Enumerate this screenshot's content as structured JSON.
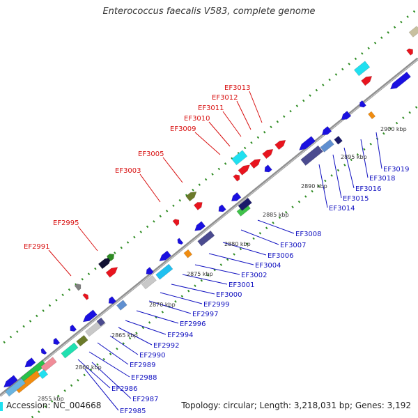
{
  "title": "Enterococcus faecalis V583, complete genome",
  "footer": {
    "accession": "Accession: NC_004668",
    "topology": "Topology: circular; Length: 3,218,031 bp; Genes: 3,192"
  },
  "colors": {
    "forward_strand": "#e8141e",
    "reverse_strand": "#1a10e0",
    "backbone": "#8a8a8a",
    "tick_dots": "#2e8b22",
    "label_red": "#d81010",
    "label_blue": "#1010c0"
  },
  "scale_ticks": [
    "2855 kbp",
    "2860 kbp",
    "2865 kbp",
    "2870 kbp",
    "2875 kbp",
    "2880 kbp",
    "2885 kbp",
    "2890 kbp",
    "2895 kbp",
    "2900 kbp"
  ],
  "top_genes": [
    "EF2991",
    "EF2995",
    "EF3003",
    "EF3005",
    "EF3009",
    "EF3010",
    "EF3011",
    "EF3012",
    "EF3013"
  ],
  "bottom_genes": [
    "EF2985",
    "EF2986",
    "EF2987",
    "EF2988",
    "EF2989",
    "EF2990",
    "EF2992",
    "EF2994",
    "EF2996",
    "EF2997",
    "EF2999",
    "EF3000",
    "EF3001",
    "EF3002",
    "EF3004",
    "EF3006",
    "EF3007",
    "EF3008",
    "EF3014",
    "EF3015",
    "EF3016",
    "EF3018",
    "EF3019"
  ]
}
